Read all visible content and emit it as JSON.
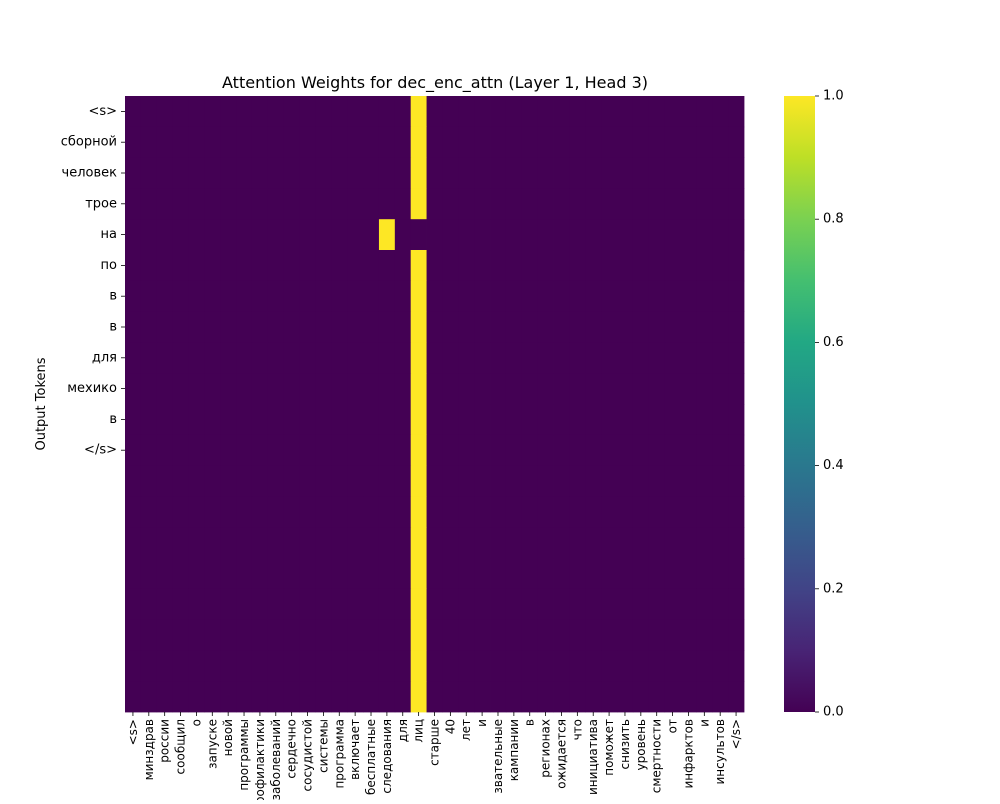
{
  "chart_data": {
    "type": "heatmap",
    "title": "Attention Weights for dec_enc_attn (Layer 1, Head 3)",
    "xlabel": "",
    "ylabel": "Output Tokens",
    "x_tokens": [
      "<s>",
      "минздрав",
      "россии",
      "сообщил",
      "о",
      "запуске",
      "новой",
      "программы",
      "рофилактики",
      "заболеваний",
      "сердечно",
      "сосудистой",
      "системы",
      "программа",
      "включает",
      "бесплатные",
      "следования",
      "для",
      "лиц",
      "старше",
      "40",
      "лет",
      "и",
      "звательные",
      "кампании",
      "в",
      "регионах",
      "ожидается",
      "что",
      "инициатива",
      "поможет",
      "снизить",
      "уровень",
      "смертности",
      "от",
      "инфарктов",
      "и",
      "инсультов",
      "</s>"
    ],
    "y_tokens": [
      "<s>",
      "сборной",
      "человек",
      "трое",
      "на",
      "по",
      "в",
      "в",
      "для",
      "мехико",
      "в",
      "</s>"
    ],
    "y_rows_total": 20,
    "hot_column": 18,
    "special_cells": [
      {
        "row": 4,
        "col": 16,
        "value": 1.0
      },
      {
        "row": 4,
        "col": 18,
        "value": 0.0
      }
    ],
    "colorbar": {
      "min": 0.0,
      "max": 1.0,
      "ticks": [
        "0.0",
        "0.2",
        "0.4",
        "0.6",
        "0.8",
        "1.0"
      ],
      "colormap": "viridis"
    },
    "colors": {
      "low": "#440154",
      "high": "#fde725"
    }
  }
}
